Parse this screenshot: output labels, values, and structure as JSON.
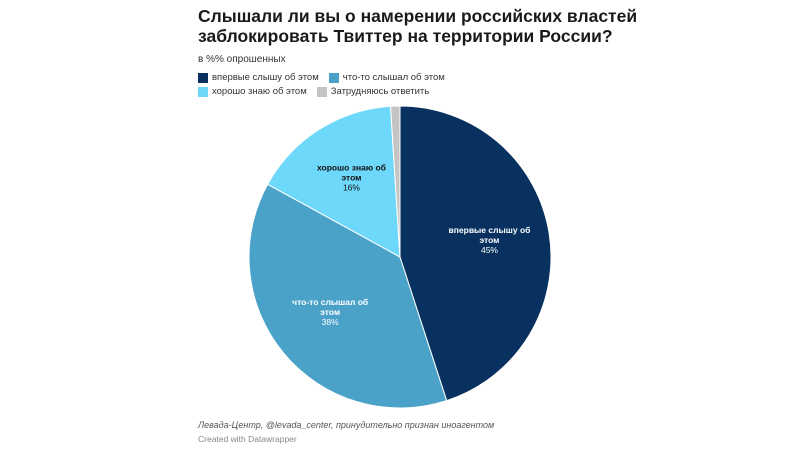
{
  "chart_data": {
    "type": "pie",
    "title": "Слышали ли вы о намерении российских властей заблокировать Твиттер на территории России?",
    "subtitle": "в %% опрошенных",
    "legend_placement": "top-left",
    "slices": [
      {
        "name": "впервые слышу об этом",
        "value": 45,
        "label": "45%",
        "color": "#08315f",
        "text_color": "#ffffff"
      },
      {
        "name": "что-то слышал об этом",
        "value": 38,
        "label": "38%",
        "color": "#4ba2c9",
        "text_color": "#ffffff"
      },
      {
        "name": "хорошо знаю об этом",
        "value": 16,
        "label": "16%",
        "color": "#6ed8fb",
        "text_color": "#111111"
      },
      {
        "name": "Затрудняюсь ответить",
        "value": 1,
        "label": "",
        "color": "#c4c4c4",
        "text_color": "#111111"
      }
    ]
  },
  "footer": {
    "notes": "Левада-Центр, @levada_center, принудительно признан иноагентом",
    "credit": "Created with Datawrapper"
  }
}
